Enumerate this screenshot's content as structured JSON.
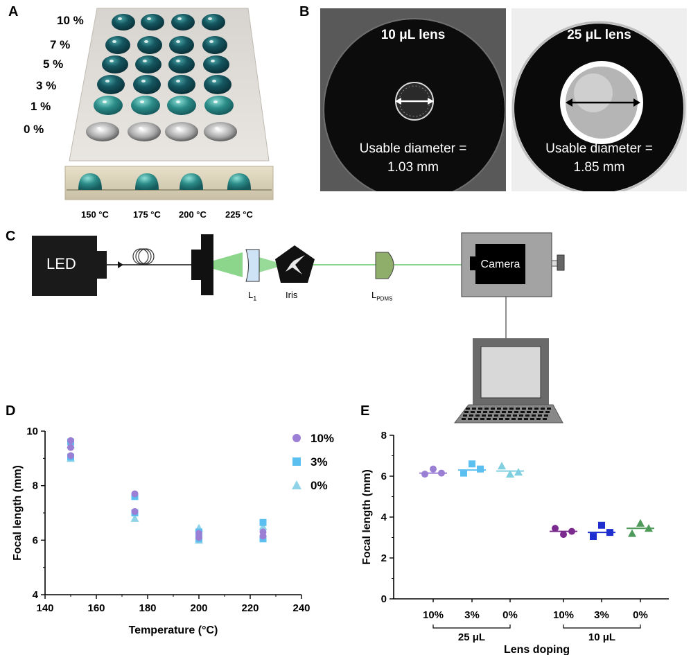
{
  "panels": {
    "a_letter": "A",
    "b_letter": "B",
    "c_letter": "C",
    "d_letter": "D",
    "e_letter": "E"
  },
  "panel_a": {
    "concentrations": [
      "10 %",
      "7 %",
      "5 %",
      "3 %",
      "1 %",
      "0 %"
    ],
    "temperatures": [
      "150 °C",
      "175 °C",
      "200 °C",
      "225 °C"
    ]
  },
  "panel_b": {
    "left": {
      "title": "10 μL lens",
      "line1": "Usable diameter =",
      "line2": "1.03 mm"
    },
    "right": {
      "title": "25 μL lens",
      "line1": "Usable diameter =",
      "line2": "1.85 mm"
    }
  },
  "panel_c": {
    "led_label": "LED",
    "l1_label": "L",
    "l1_sub": "1",
    "iris_label": "Iris",
    "lpdms_label": "L",
    "lpdms_sub": "PDMS",
    "camera_label": "Camera",
    "colors": {
      "beam": "#7ed17e",
      "lens_blue": "#cfe3f7",
      "lens_green": "#8fae6a"
    }
  },
  "chart_data": [
    {
      "type": "scatter",
      "panel": "D",
      "xlabel": "Temperature (°C)",
      "ylabel": "Focal length (mm)",
      "xlim": [
        140,
        240
      ],
      "ylim": [
        4,
        10
      ],
      "xticks": [
        140,
        160,
        180,
        200,
        220,
        240
      ],
      "yticks": [
        4,
        6,
        8,
        10
      ],
      "legend_position": "top-right",
      "series": [
        {
          "name": "10%",
          "marker": "circle",
          "color": "#9b7fd4",
          "points": [
            [
              150,
              9.65
            ],
            [
              150,
              9.4
            ],
            [
              150,
              9.1
            ],
            [
              175,
              7.7
            ],
            [
              175,
              7.05
            ],
            [
              200,
              6.25
            ],
            [
              200,
              6.1
            ],
            [
              225,
              6.3
            ],
            [
              225,
              6.15
            ]
          ]
        },
        {
          "name": "3%",
          "marker": "square",
          "color": "#5bc0f0",
          "points": [
            [
              150,
              9.6
            ],
            [
              150,
              9.05
            ],
            [
              175,
              7.6
            ],
            [
              175,
              7.0
            ],
            [
              200,
              6.3
            ],
            [
              200,
              6.05
            ],
            [
              225,
              6.65
            ],
            [
              225,
              6.05
            ]
          ]
        },
        {
          "name": "0%",
          "marker": "triangle",
          "color": "#8fd3e8",
          "points": [
            [
              150,
              9.5
            ],
            [
              150,
              9.0
            ],
            [
              175,
              6.8
            ],
            [
              200,
              6.45
            ],
            [
              200,
              6.0
            ],
            [
              225,
              6.5
            ]
          ]
        }
      ]
    },
    {
      "type": "scatter",
      "panel": "E",
      "xlabel": "Lens doping",
      "ylabel": "Focal length (mm)",
      "ylim": [
        0,
        8
      ],
      "yticks": [
        0,
        2,
        4,
        6,
        8
      ],
      "categories": [
        "10%",
        "3%",
        "0%",
        "10%",
        "3%",
        "0%"
      ],
      "groups": [
        {
          "label": "25 μL"
        },
        {
          "label": "10 μL"
        }
      ],
      "series": [
        {
          "category": "10%",
          "group": "25 μL",
          "marker": "circle",
          "color": "#9b7fd4",
          "mean": 6.15,
          "values": [
            6.1,
            6.35,
            6.15
          ]
        },
        {
          "category": "3%",
          "group": "25 μL",
          "marker": "square",
          "color": "#5bc0f0",
          "mean": 6.3,
          "values": [
            6.15,
            6.6,
            6.35
          ]
        },
        {
          "category": "0%",
          "group": "25 μL",
          "marker": "triangle",
          "color": "#7fcfe0",
          "mean": 6.25,
          "values": [
            6.5,
            6.1,
            6.2
          ]
        },
        {
          "category": "10%",
          "group": "10 μL",
          "marker": "circle",
          "color": "#7b2a8e",
          "mean": 3.3,
          "values": [
            3.45,
            3.15,
            3.3
          ]
        },
        {
          "category": "3%",
          "group": "10 μL",
          "marker": "square",
          "color": "#1f2fcf",
          "mean": 3.25,
          "values": [
            3.05,
            3.6,
            3.25
          ]
        },
        {
          "category": "0%",
          "group": "10 μL",
          "marker": "triangle",
          "color": "#4e9a5a",
          "mean": 3.45,
          "values": [
            3.2,
            3.7,
            3.45
          ]
        }
      ]
    }
  ]
}
